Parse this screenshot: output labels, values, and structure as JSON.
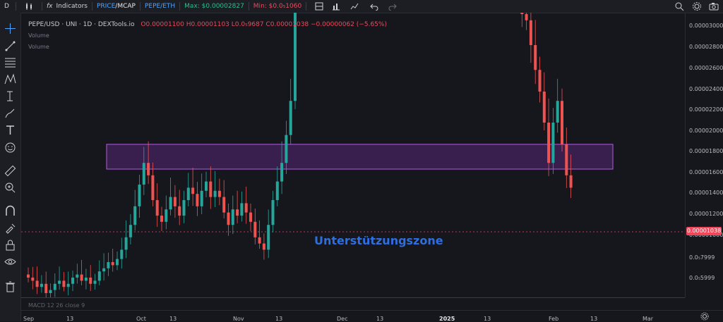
{
  "topbar": {
    "left_letter": "D",
    "indicators": "Indicators",
    "price_mcap_a": "PRICE",
    "price_mcap_b": "/MCAP",
    "pepe_eth": "PEPE/ETH",
    "max": "Max: $0.00002827",
    "min": "Min: $0.0₅1060"
  },
  "legend": {
    "pair": "PEPE/USD · UNI · 1D · DEXTools.io",
    "ohlc": "O0.00001100 H0.00001103 L0.0₅9687 C0.00001038 −0.00000062 (−5.65%)",
    "volume1": "Volume",
    "volume2": "Volume"
  },
  "annotation": {
    "zone_label": "Unterstützungszone"
  },
  "macd": {
    "label": "MACD 12 26 close 9"
  },
  "current_price": "0.00001038",
  "colors": {
    "up": "#26a69a",
    "down": "#ef5350",
    "zone": "#7b2fa8",
    "zone_label": "#2f6ee0"
  },
  "chart_data": {
    "type": "candlestick",
    "y_ticks": [
      "0.00003000",
      "0.00002800",
      "0.00002600",
      "0.00002400",
      "0.00002200",
      "0.00002000",
      "0.00001800",
      "0.00001600",
      "0.00001400",
      "0.00001200",
      "0.00001000",
      "0.0₅7999",
      "0.0₅5999"
    ],
    "x_ticks": [
      "Sep",
      "13",
      "Oct",
      "13",
      "Nov",
      "13",
      "Dec",
      "13",
      "2025",
      "13",
      "Feb",
      "13",
      "Mar"
    ],
    "support_zone": [
      1.1e-05,
      1.18e-05
    ],
    "closes": [
      7.5e-06,
      7.4e-06,
      7.2e-06,
      7.3e-06,
      7e-06,
      7.1e-06,
      7.3e-06,
      7.4e-06,
      7.2e-06,
      7.3e-06,
      7.5e-06,
      7.6e-06,
      7.4e-06,
      7.5e-06,
      7.3e-06,
      7.4e-06,
      7.7e-06,
      7.8e-06,
      8e-06,
      7.9e-06,
      8.1e-06,
      8.4e-06,
      8.8e-06,
      9.2e-06,
      9.8e-06,
      1.05e-05,
      1.12e-05,
      1.08e-05,
      1e-05,
      9.5e-06,
      9.3e-06,
      9.7e-06,
      1.01e-05,
      9.8e-06,
      9.5e-06,
      1e-05,
      1.04e-05,
      1.02e-05,
      9.8e-06,
      1.03e-05,
      1.06e-05,
      1.01e-05,
      1.03e-05,
      1.01e-05,
      9.6e-06,
      9.2e-06,
      9.7e-06,
      9.5e-06,
      9.9e-06,
      9.6e-06,
      9.3e-06,
      8.8e-06,
      8.6e-06,
      8.4e-06,
      9.2e-06,
      1e-05,
      1.06e-05,
      1.12e-05,
      1.21e-05,
      1.32e-05,
      1.9e-05,
      2.32e-05,
      2.12e-05,
      1.95e-05,
      1.93e-05,
      1.85e-05,
      1.92e-05,
      2e-05,
      1.94e-05,
      1.96e-05,
      1.82e-05,
      1.86e-05,
      1.98e-05,
      1.95e-05,
      2.05e-05,
      1.98e-05,
      2.1e-05,
      2.15e-05,
      2.28e-05,
      2.6e-05,
      2.68e-05,
      2.5e-05,
      2.4e-05,
      2.42e-05,
      2.36e-05,
      2.32e-05,
      2.25e-05,
      2.1e-05,
      1.9e-05,
      1.68e-05,
      1.75e-05,
      1.72e-05,
      1.82e-05,
      1.78e-05,
      1.85e-05,
      1.75e-05,
      1.8e-05,
      1.95e-05,
      2.12e-05,
      2.06e-05,
      2.05e-05,
      1.95e-05,
      1.78e-05,
      1.75e-05,
      1.7e-05,
      1.72e-05,
      1.68e-05,
      1.75e-05,
      1.86e-05,
      2.05e-05,
      1.75e-05,
      1.6e-05,
      1.58e-05,
      1.5e-05,
      1.42e-05,
      1.35e-05,
      1.25e-05,
      1.12e-05,
      1.25e-05,
      1.32e-05,
      1.18e-05,
      1.08e-05,
      1.04e-05
    ]
  }
}
